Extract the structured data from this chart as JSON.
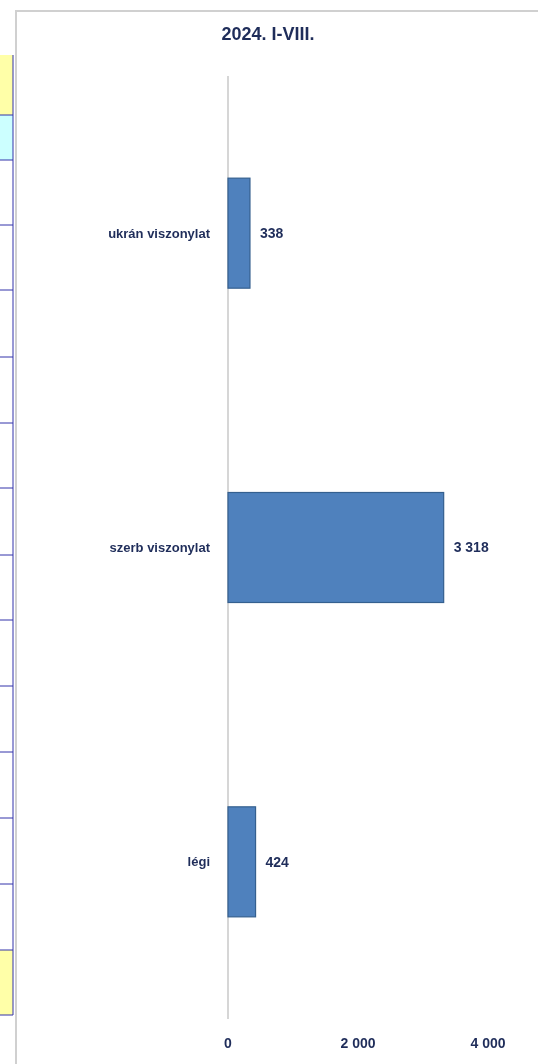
{
  "chart_data": {
    "type": "bar",
    "orientation": "horizontal",
    "title": "2024. I-VIII.",
    "categories": [
      "ukrán viszonylat",
      "szerb viszonylat",
      "légi"
    ],
    "values": [
      338,
      3318,
      424
    ],
    "value_labels": [
      "338",
      "3 318",
      "424"
    ],
    "color": "#4f81bd",
    "xlim": [
      0,
      4000
    ],
    "xticks": [
      0,
      {
        "value": 2000,
        "label": "2 000"
      },
      {
        "value": 4000,
        "label": "4 000"
      }
    ]
  }
}
